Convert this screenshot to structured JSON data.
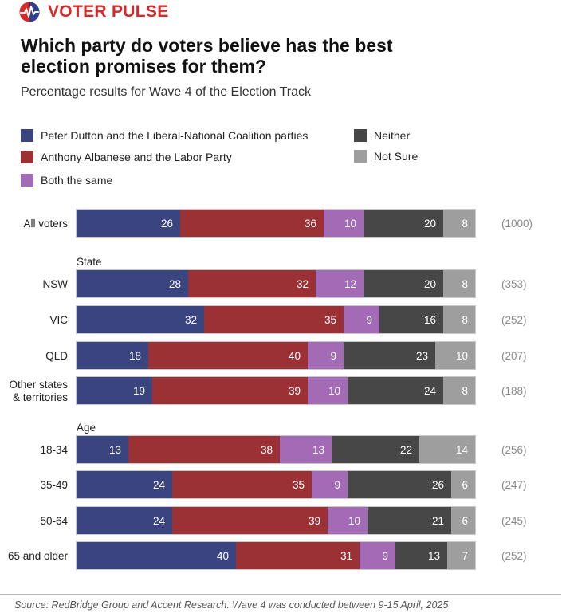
{
  "brand": {
    "name_part1": "VOTER",
    "name_part2": "PULSE",
    "color": "#d42a2a"
  },
  "title": "Which party do voters believe has the best election promises for them?",
  "subtitle": "Percentage results for Wave 4 of the Election Track",
  "source": "Source: RedBridge Group and Accent Research. Wave 4 was conducted between 9-15 April, 2025",
  "chart_data": {
    "type": "bar",
    "orientation": "horizontal",
    "stacked": true,
    "title": "Which party do voters believe has the best election promises for them?",
    "subtitle": "Percentage results for Wave 4 of the Election Track",
    "xlim": [
      0,
      100
    ],
    "unit": "%",
    "legend_position": "top",
    "series": [
      {
        "name": "Peter Dutton and the Liberal-National Coalition parties",
        "color": "#3a4580"
      },
      {
        "name": "Anthony Albanese and the Labor Party",
        "color": "#9c3135"
      },
      {
        "name": "Both the same",
        "color": "#a36bb6"
      },
      {
        "name": "Neither",
        "color": "#474747"
      },
      {
        "name": "Not Sure",
        "color": "#9e9e9e"
      }
    ],
    "groups": [
      {
        "heading": "",
        "rows": [
          {
            "label": "All voters",
            "values": [
              26,
              36,
              10,
              20,
              8
            ],
            "n": "(1000)"
          }
        ]
      },
      {
        "heading": "State",
        "rows": [
          {
            "label": "NSW",
            "values": [
              28,
              32,
              12,
              20,
              8
            ],
            "n": "(353)"
          },
          {
            "label": "VIC",
            "values": [
              32,
              35,
              9,
              16,
              8
            ],
            "n": "(252)"
          },
          {
            "label": "QLD",
            "values": [
              18,
              40,
              9,
              23,
              10
            ],
            "n": "(207)"
          },
          {
            "label": "Other states & territories",
            "label_lines": [
              "Other states",
              "& territories"
            ],
            "values": [
              19,
              39,
              10,
              24,
              8
            ],
            "n": "(188)"
          }
        ]
      },
      {
        "heading": "Age",
        "rows": [
          {
            "label": "18-34",
            "values": [
              13,
              38,
              13,
              22,
              14
            ],
            "n": "(256)"
          },
          {
            "label": "35-49",
            "values": [
              24,
              35,
              9,
              26,
              6
            ],
            "n": "(247)"
          },
          {
            "label": "50-64",
            "values": [
              24,
              39,
              10,
              21,
              6
            ],
            "n": "(245)"
          },
          {
            "label": "65 and older",
            "values": [
              40,
              31,
              9,
              13,
              7
            ],
            "n": "(252)"
          }
        ]
      }
    ]
  }
}
